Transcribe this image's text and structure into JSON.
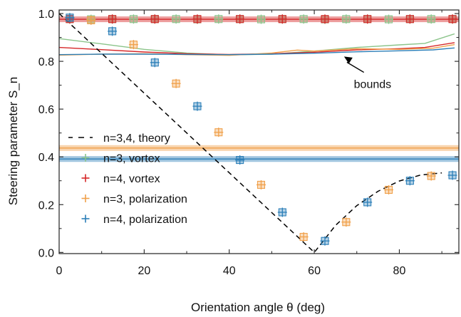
{
  "chart_data": {
    "type": "scatter",
    "xlabel": "Orientation angle θ (deg)",
    "ylabel": "Steering parameter S_n",
    "xlim": [
      0,
      94
    ],
    "ylim": [
      -0.005,
      1.015
    ],
    "xticks": [
      0,
      20,
      40,
      60,
      80
    ],
    "yticks": [
      0.0,
      0.2,
      0.4,
      0.6,
      0.8,
      1.0
    ],
    "xtick_labels": [
      "0",
      "20",
      "40",
      "60",
      "80"
    ],
    "ytick_labels": [
      "0.0",
      "0.2",
      "0.4",
      "0.6",
      "0.8",
      "1.0"
    ],
    "grid": false,
    "legend_position": "left",
    "colors": {
      "green": "#8bc48a",
      "red": "#d62728",
      "orange": "#f0a04a",
      "blue": "#2c7fb8"
    },
    "theory": {
      "name": "n=3,4, theory",
      "points": [
        [
          0,
          1.0
        ],
        [
          60,
          0.0
        ],
        [
          65,
          0.113
        ],
        [
          70,
          0.196
        ],
        [
          75,
          0.256
        ],
        [
          80,
          0.299
        ],
        [
          85,
          0.324
        ],
        [
          90,
          0.333
        ]
      ]
    },
    "bands": [
      {
        "name": "n=4 vortex band",
        "color": "red",
        "y": 0.976,
        "half_width": 0.012
      },
      {
        "name": "n=3 polarization band",
        "color": "orange",
        "y": 0.437,
        "half_width": 0.012
      },
      {
        "name": "n=4 polarization band",
        "color": "blue",
        "y": 0.391,
        "half_width": 0.012
      }
    ],
    "bound_lines": [
      {
        "name": "n=3 vortex bound",
        "color": "green",
        "points": [
          [
            0,
            0.895
          ],
          [
            10,
            0.873
          ],
          [
            20,
            0.85
          ],
          [
            30,
            0.835
          ],
          [
            40,
            0.827
          ],
          [
            50,
            0.83
          ],
          [
            60,
            0.843
          ],
          [
            70,
            0.858
          ],
          [
            80,
            0.869
          ],
          [
            86,
            0.875
          ],
          [
            93,
            0.915
          ]
        ]
      },
      {
        "name": "n=4 vortex bound",
        "color": "red",
        "points": [
          [
            0,
            0.858
          ],
          [
            10,
            0.849
          ],
          [
            20,
            0.839
          ],
          [
            30,
            0.832
          ],
          [
            40,
            0.829
          ],
          [
            50,
            0.832
          ],
          [
            60,
            0.838
          ],
          [
            70,
            0.848
          ],
          [
            80,
            0.853
          ],
          [
            86,
            0.858
          ],
          [
            93,
            0.878
          ]
        ]
      },
      {
        "name": "n=3 polarization bound",
        "color": "orange",
        "points": [
          [
            0,
            0.826
          ],
          [
            10,
            0.83
          ],
          [
            20,
            0.832
          ],
          [
            30,
            0.828
          ],
          [
            40,
            0.825
          ],
          [
            50,
            0.835
          ],
          [
            56,
            0.847
          ],
          [
            60,
            0.843
          ],
          [
            70,
            0.853
          ],
          [
            80,
            0.85
          ],
          [
            88,
            0.855
          ],
          [
            93,
            0.87
          ]
        ]
      },
      {
        "name": "n=4 polarization bound",
        "color": "blue",
        "points": [
          [
            0,
            0.828
          ],
          [
            10,
            0.83
          ],
          [
            20,
            0.83
          ],
          [
            30,
            0.829
          ],
          [
            40,
            0.828
          ],
          [
            50,
            0.83
          ],
          [
            60,
            0.834
          ],
          [
            70,
            0.84
          ],
          [
            80,
            0.844
          ],
          [
            88,
            0.848
          ],
          [
            93,
            0.856
          ]
        ]
      }
    ],
    "series": [
      {
        "name": "n=3, vortex",
        "color": "green",
        "x": [
          2.5,
          7.5,
          12.5,
          17.5,
          22.5,
          27.5,
          32.5,
          37.5,
          42.5,
          47.5,
          52.5,
          57.5,
          62.5,
          67.5,
          72.5,
          77.5,
          82.5,
          87.5,
          92.5
        ],
        "y": [
          0.977,
          0.976,
          0.977,
          0.977,
          0.977,
          0.977,
          0.976,
          0.977,
          0.977,
          0.976,
          0.977,
          0.977,
          0.976,
          0.977,
          0.977,
          0.976,
          0.977,
          0.977,
          0.977
        ]
      },
      {
        "name": "n=4, vortex",
        "color": "red",
        "x": [
          2.5,
          12.5,
          22.5,
          32.5,
          42.5,
          52.5,
          62.5,
          72.5,
          82.5,
          92.5
        ],
        "y": [
          0.977,
          0.977,
          0.977,
          0.977,
          0.977,
          0.977,
          0.977,
          0.977,
          0.977,
          0.977
        ]
      },
      {
        "name": "n=3, polarization",
        "color": "orange",
        "x": [
          7.5,
          17.5,
          27.5,
          37.5,
          47.5,
          57.5,
          67.5,
          77.5,
          87.5
        ],
        "y": [
          0.972,
          0.87,
          0.707,
          0.503,
          0.283,
          0.065,
          0.127,
          0.262,
          0.32
        ]
      },
      {
        "name": "n=4, polarization",
        "color": "blue",
        "x": [
          2.5,
          12.5,
          22.5,
          32.5,
          42.5,
          52.5,
          62.5,
          72.5,
          82.5,
          92.5
        ],
        "y": [
          0.983,
          0.926,
          0.795,
          0.612,
          0.387,
          0.168,
          0.048,
          0.21,
          0.3,
          0.323
        ]
      }
    ],
    "legend": [
      {
        "label": "n=3,4, theory",
        "style": "dash",
        "color": "#000000"
      },
      {
        "label": "n=3, vortex",
        "style": "plus",
        "color": "green"
      },
      {
        "label": "n=4, vortex",
        "style": "plus",
        "color": "red"
      },
      {
        "label": "n=3, polarization",
        "style": "plus",
        "color": "orange"
      },
      {
        "label": "n=4, polarization",
        "style": "plus",
        "color": "blue"
      }
    ],
    "annotation": {
      "text": "bounds",
      "xy": [
        67,
        0.832
      ],
      "xytext": [
        73,
        0.73
      ]
    }
  }
}
